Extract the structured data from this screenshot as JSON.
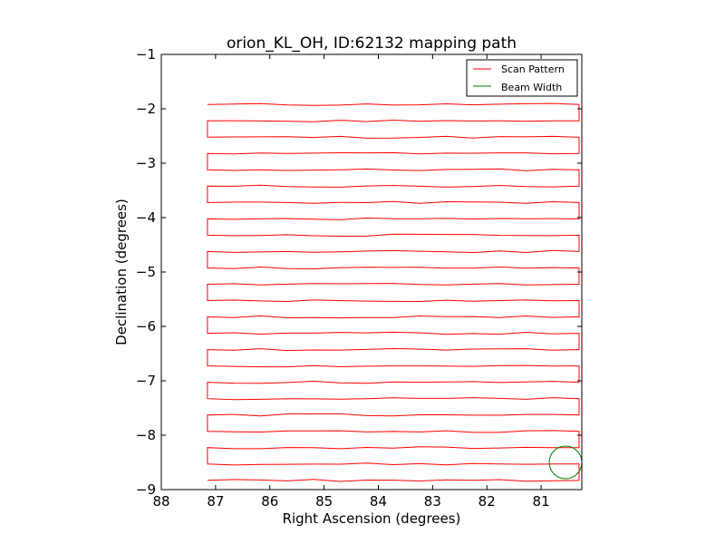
{
  "chart_data": {
    "type": "line",
    "title": "orion_KL_OH, ID:62132 mapping path",
    "xlabel": "Right Ascension (degrees)",
    "ylabel": "Declination (degrees)",
    "xlim": [
      88,
      80.25
    ],
    "ylim": [
      -9,
      -1
    ],
    "xticks": [
      88,
      87,
      86,
      85,
      84,
      83,
      82,
      81
    ],
    "yticks": [
      -1,
      -2,
      -3,
      -4,
      -5,
      -6,
      -7,
      -8,
      -9
    ],
    "xtick_labels": [
      "88",
      "87",
      "86",
      "85",
      "84",
      "83",
      "82",
      "81"
    ],
    "ytick_labels": [
      "−1",
      "−2",
      "−3",
      "−4",
      "−5",
      "−6",
      "−7",
      "−8",
      "−9"
    ],
    "grid": false,
    "legend_position": "top-right",
    "series": [
      {
        "name": "Scan Pattern",
        "color": "#ff0000",
        "raster": {
          "dec_start": -1.92,
          "dec_end": -8.83,
          "rows": 24,
          "ra_west": 87.15,
          "ra_east": 80.3,
          "wobble_amplitude": 0.02
        }
      },
      {
        "name": "Beam Width",
        "color": "#008000",
        "circle": {
          "ra": 80.55,
          "dec": -8.5,
          "radius_deg": 0.3
        }
      }
    ]
  }
}
